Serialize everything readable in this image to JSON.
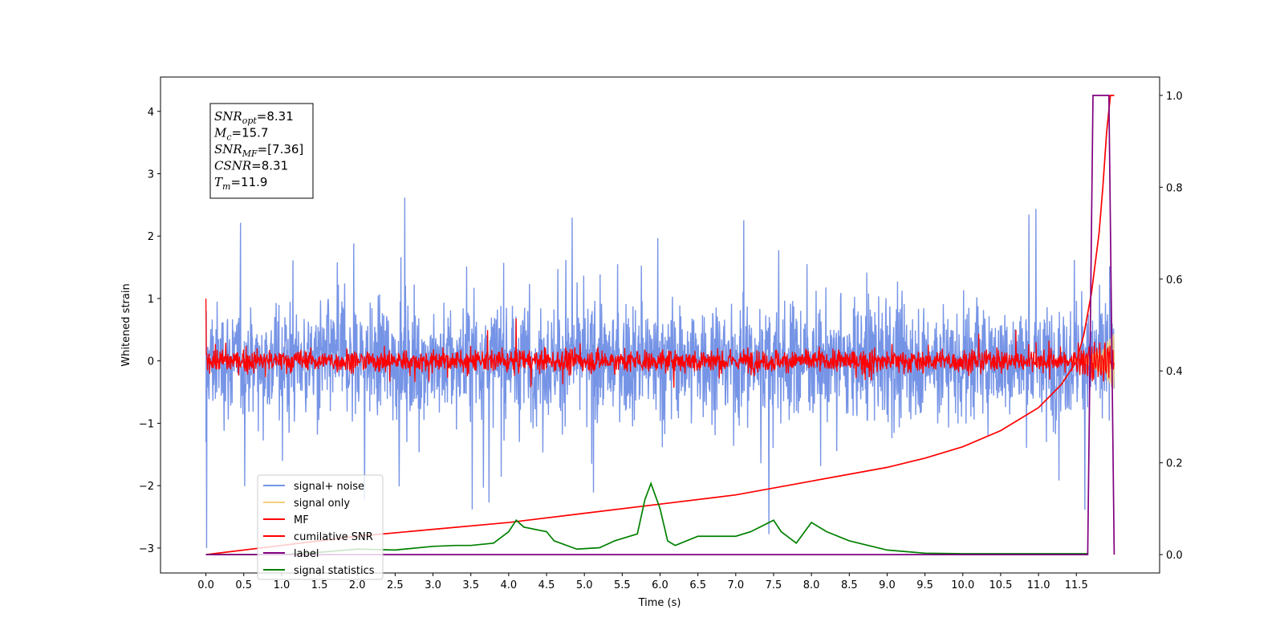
{
  "chart_data": {
    "type": "line",
    "xlabel": "Time (s)",
    "ylabel": "Whitened strain",
    "xlim": [
      -0.6,
      12.6
    ],
    "ylim": [
      -3.4,
      4.55
    ],
    "y2lim": [
      -0.04,
      1.04
    ],
    "xticks": [
      "0.0",
      "0.5",
      "1.0",
      "1.5",
      "2.0",
      "2.5",
      "3.0",
      "3.5",
      "4.0",
      "4.5",
      "5.0",
      "5.5",
      "6.0",
      "6.5",
      "7.0",
      "7.5",
      "8.0",
      "8.5",
      "9.0",
      "9.5",
      "10.0",
      "10.5",
      "11.0",
      "11.5"
    ],
    "yticks": [
      "4",
      "3",
      "2",
      "1",
      "0",
      "−1",
      "−2",
      "−3"
    ],
    "y2ticks": [
      "1.0",
      "0.8",
      "0.6",
      "0.4",
      "0.2",
      "0.0"
    ],
    "legend_position": "lower-left",
    "annotation": [
      {
        "sym": "SNR",
        "sub": "opt",
        "val": "=8.31"
      },
      {
        "sym": "M",
        "sub": "c",
        "val": "=15.7"
      },
      {
        "sym": "SNR",
        "sub": "MF",
        "val": "=[7.36]"
      },
      {
        "sym": "CSNR",
        "sub": "",
        "val": "=8.31"
      },
      {
        "sym": "T",
        "sub": "m",
        "val": "=11.9"
      }
    ],
    "series": [
      {
        "name": "signal+ noise",
        "axis": "left",
        "color": "#7694e6",
        "amplitude_std": 0.8,
        "range": [
          -3.0,
          2.7
        ],
        "x_range": [
          0.0,
          12.0
        ]
      },
      {
        "name": "signal only",
        "axis": "left",
        "color": "#f5cf7a",
        "note_peak_amplitude": 0.45,
        "x_range": [
          11.4,
          12.0
        ]
      },
      {
        "name": "MF",
        "axis": "left",
        "color": "#ff0000",
        "start": 1.0,
        "amplitude_std": 0.15,
        "x_range": [
          0.0,
          12.0
        ]
      },
      {
        "name": "cumilative SNR",
        "axis": "right",
        "color": "#ff0000",
        "x": [
          0.0,
          1.0,
          2.0,
          3.0,
          4.0,
          5.0,
          6.0,
          7.0,
          8.0,
          9.0,
          9.5,
          10.0,
          10.5,
          11.0,
          11.3,
          11.5,
          11.6,
          11.7,
          11.8,
          11.85,
          11.9,
          11.95,
          12.0
        ],
        "y": [
          0.0,
          0.02,
          0.04,
          0.055,
          0.07,
          0.09,
          0.11,
          0.13,
          0.16,
          0.19,
          0.21,
          0.235,
          0.27,
          0.32,
          0.37,
          0.42,
          0.48,
          0.57,
          0.7,
          0.8,
          0.92,
          1.0,
          1.0
        ]
      },
      {
        "name": "label",
        "axis": "right",
        "color": "#800080",
        "x": [
          0.0,
          11.65,
          11.72,
          11.93,
          12.0
        ],
        "y": [
          0.0,
          0.0,
          1.0,
          1.0,
          0.0
        ]
      },
      {
        "name": "signal statistics",
        "axis": "right",
        "color": "#008000",
        "x": [
          0.0,
          0.5,
          1.0,
          1.5,
          2.0,
          2.5,
          3.0,
          3.3,
          3.5,
          3.8,
          4.0,
          4.1,
          4.2,
          4.5,
          4.6,
          4.9,
          5.2,
          5.4,
          5.6,
          5.7,
          5.8,
          5.88,
          6.0,
          6.1,
          6.2,
          6.5,
          7.0,
          7.2,
          7.5,
          7.6,
          7.8,
          8.0,
          8.2,
          8.5,
          9.0,
          9.5,
          10.0,
          11.0,
          11.5,
          11.65
        ],
        "y": [
          0.0,
          0.0,
          0.0,
          0.005,
          0.012,
          0.01,
          0.018,
          0.02,
          0.02,
          0.025,
          0.05,
          0.075,
          0.06,
          0.05,
          0.03,
          0.012,
          0.015,
          0.03,
          0.04,
          0.045,
          0.12,
          0.155,
          0.1,
          0.03,
          0.02,
          0.04,
          0.04,
          0.05,
          0.075,
          0.05,
          0.025,
          0.07,
          0.05,
          0.03,
          0.01,
          0.003,
          0.002,
          0.002,
          0.002,
          0.002
        ]
      }
    ]
  }
}
